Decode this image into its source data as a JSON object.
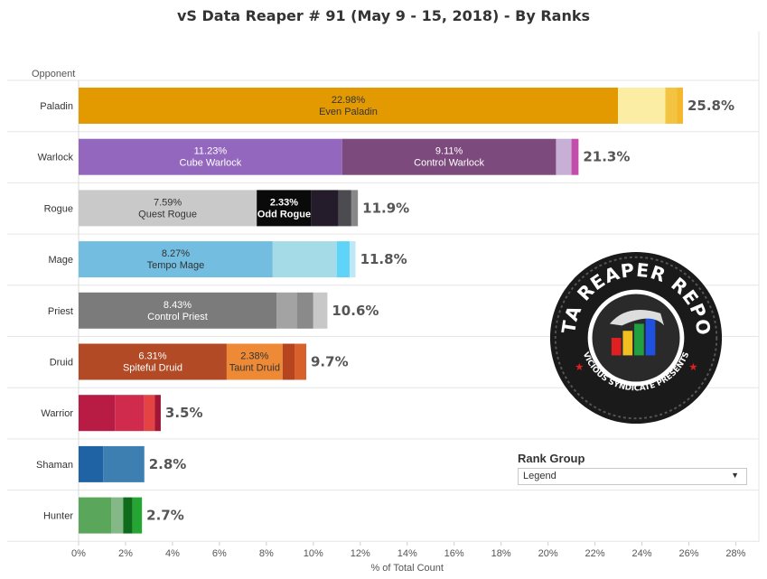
{
  "title": "vS Data Reaper #  91 (May 9 - 15, 2018) - By Ranks",
  "legend": {
    "title": "Rank Group",
    "selected": "Legend"
  },
  "chart_data": {
    "type": "bar",
    "orientation": "horizontal",
    "stacked": true,
    "y_header": "Opponent",
    "xlabel": "% of Total Count",
    "xlim": [
      0,
      28
    ],
    "xticks": [
      "0%",
      "2%",
      "4%",
      "6%",
      "8%",
      "10%",
      "12%",
      "14%",
      "16%",
      "18%",
      "20%",
      "22%",
      "24%",
      "26%",
      "28%"
    ],
    "categories": [
      {
        "name": "Paladin",
        "total": "25.8%",
        "segments": [
          {
            "value": 22.98,
            "color": "#e39a00",
            "label": "22.98%",
            "sub": "Even Paladin",
            "text_color": "#333"
          },
          {
            "value": 2.02,
            "color": "#fbeea4"
          },
          {
            "value": 0.5,
            "color": "#f2c441"
          },
          {
            "value": 0.25,
            "color": "#f5b82c"
          }
        ]
      },
      {
        "name": "Warlock",
        "total": "21.3%",
        "segments": [
          {
            "value": 11.23,
            "color": "#9367bd",
            "label": "11.23%",
            "sub": "Cube Warlock",
            "text_color": "#ffffff"
          },
          {
            "value": 9.11,
            "color": "#7d4a7d",
            "label": "9.11%",
            "sub": "Control Warlock",
            "text_color": "#ffffff"
          },
          {
            "value": 0.66,
            "color": "#c8afd6"
          },
          {
            "value": 0.3,
            "color": "#c44caa"
          }
        ]
      },
      {
        "name": "Rogue",
        "total": "11.9%",
        "segments": [
          {
            "value": 7.59,
            "color": "#c9c9c9",
            "label": "7.59%",
            "sub": "Quest Rogue",
            "text_color": "#333"
          },
          {
            "value": 2.33,
            "color": "#0a0a0a",
            "label": "2.33%",
            "sub": "Odd Rogue",
            "text_color": "#ffffff",
            "bold": true
          },
          {
            "value": 1.15,
            "color": "#241b2b"
          },
          {
            "value": 0.55,
            "color": "#4c4c50"
          },
          {
            "value": 0.28,
            "color": "#888888"
          }
        ]
      },
      {
        "name": "Mage",
        "total": "11.8%",
        "segments": [
          {
            "value": 8.27,
            "color": "#73bde0",
            "label": "8.27%",
            "sub": "Tempo Mage",
            "text_color": "#333"
          },
          {
            "value": 2.73,
            "color": "#a5dbe6"
          },
          {
            "value": 0.55,
            "color": "#5fd3f8"
          },
          {
            "value": 0.25,
            "color": "#bfe8f5"
          }
        ]
      },
      {
        "name": "Priest",
        "total": "10.6%",
        "segments": [
          {
            "value": 8.43,
            "color": "#7b7b7b",
            "label": "8.43%",
            "sub": "Control Priest",
            "text_color": "#ffffff"
          },
          {
            "value": 0.87,
            "color": "#a3a3a3"
          },
          {
            "value": 0.7,
            "color": "#8a8a8a"
          },
          {
            "value": 0.6,
            "color": "#c8c8c8"
          }
        ]
      },
      {
        "name": "Druid",
        "total": "9.7%",
        "segments": [
          {
            "value": 6.31,
            "color": "#b24a25",
            "label": "6.31%",
            "sub": "Spiteful Druid",
            "text_color": "#ffffff"
          },
          {
            "value": 2.38,
            "color": "#ee8a36",
            "label": "2.38%",
            "sub": "Taunt Druid",
            "text_color": "#333"
          },
          {
            "value": 0.51,
            "color": "#b5441f"
          },
          {
            "value": 0.5,
            "color": "#d8612b"
          }
        ]
      },
      {
        "name": "Warrior",
        "total": "3.5%",
        "segments": [
          {
            "value": 1.55,
            "color": "#b81b43"
          },
          {
            "value": 1.25,
            "color": "#d02a4d"
          },
          {
            "value": 0.45,
            "color": "#e34343"
          },
          {
            "value": 0.25,
            "color": "#a11536"
          }
        ]
      },
      {
        "name": "Shaman",
        "total": "2.8%",
        "segments": [
          {
            "value": 1.05,
            "color": "#2063a4"
          },
          {
            "value": 1.75,
            "color": "#3c7fb0"
          }
        ]
      },
      {
        "name": "Hunter",
        "total": "2.7%",
        "segments": [
          {
            "value": 1.4,
            "color": "#5aa75b"
          },
          {
            "value": 0.5,
            "color": "#84b987"
          },
          {
            "value": 0.4,
            "color": "#0f6b1c"
          },
          {
            "value": 0.4,
            "color": "#25a633"
          }
        ]
      }
    ]
  },
  "logo": {
    "title": "DATA REAPER REPORT",
    "subtitle": "VICIOUS SYNDICATE PRESENTS"
  }
}
